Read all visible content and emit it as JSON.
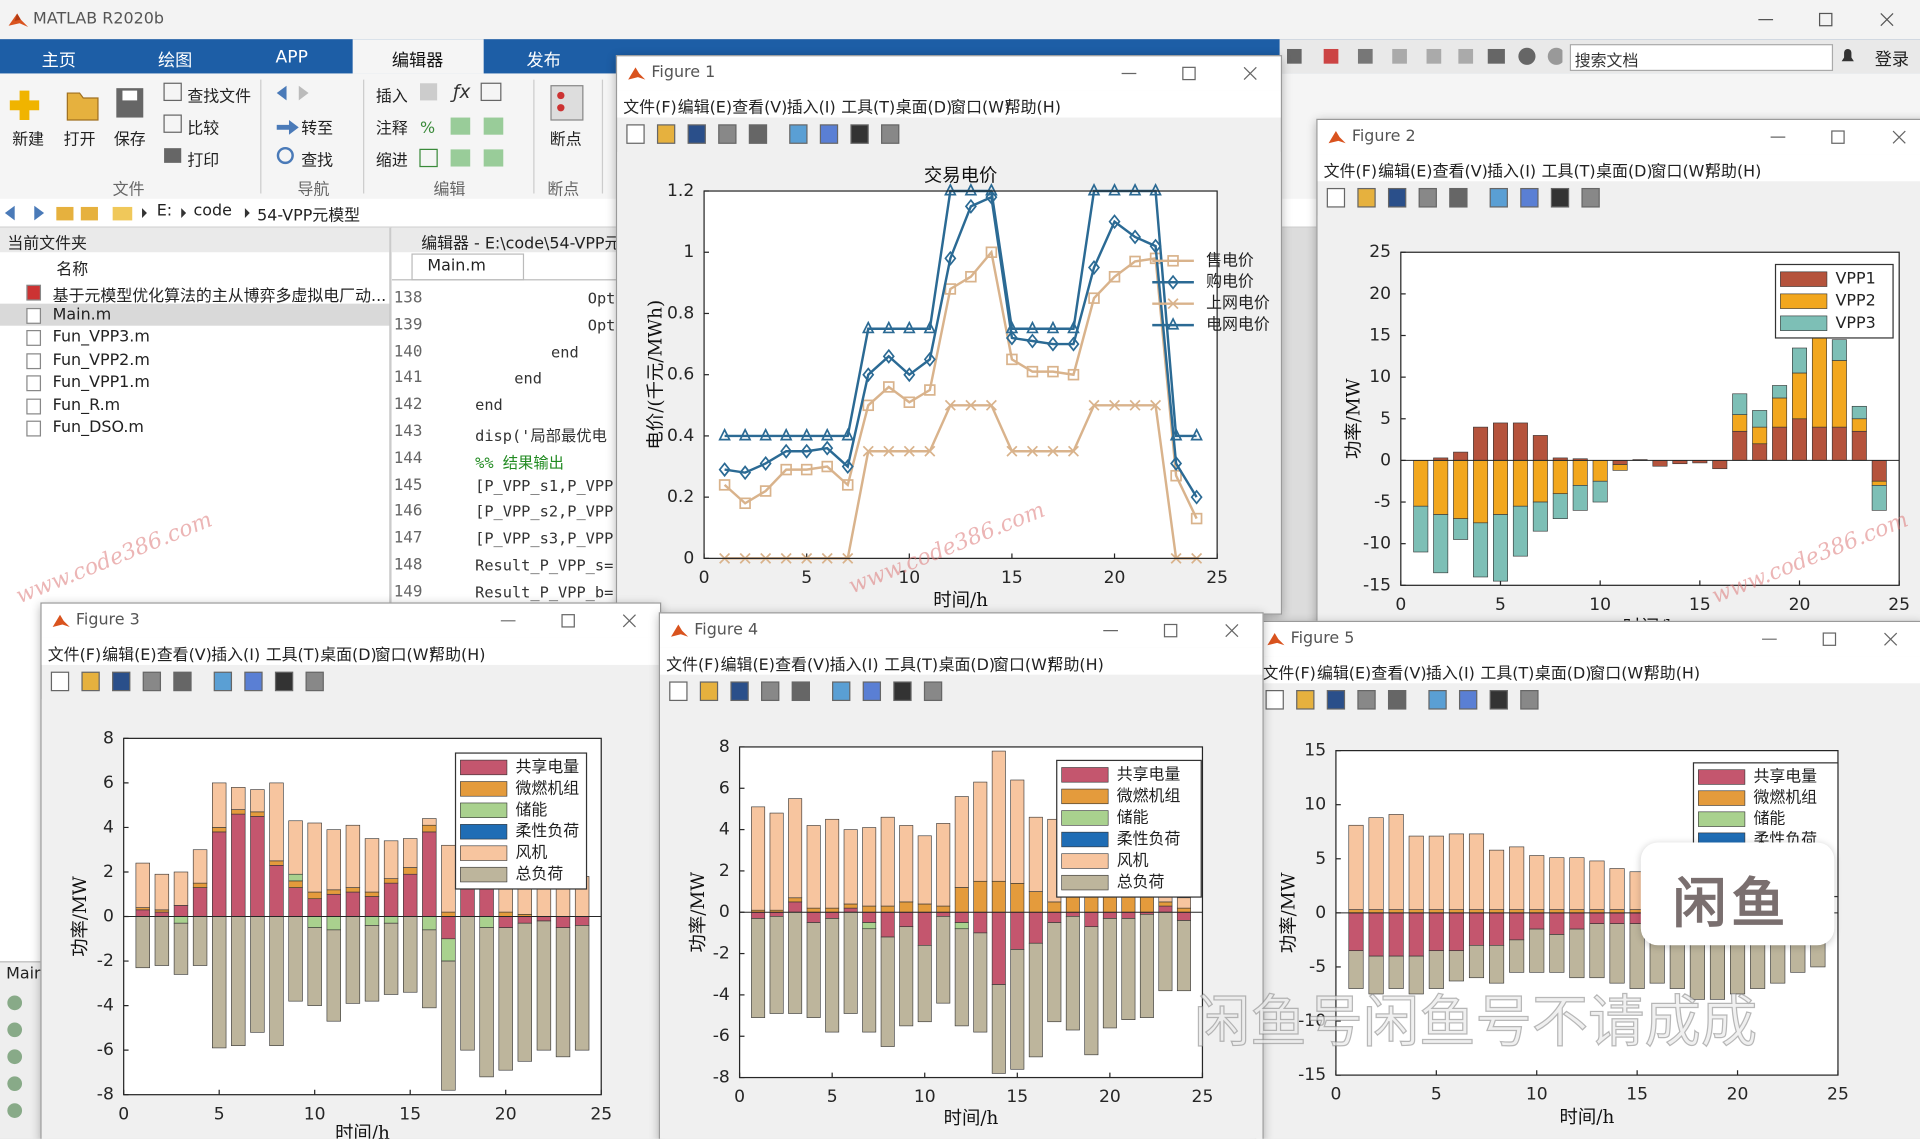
{
  "app": {
    "title": "MATLAB R2020b",
    "tabs": [
      "主页",
      "绘图",
      "APP",
      "编辑器",
      "发布"
    ],
    "ribbon": {
      "new": "新建",
      "open": "打开",
      "save": "保存",
      "find_files": "查找文件",
      "compare": "比较",
      "print": "打印",
      "goto": "转至",
      "find": "查找",
      "insert": "插入",
      "comment": "注释",
      "indent": "缩进",
      "breakpoints": "断点",
      "groups": [
        "文件",
        "导航",
        "编辑",
        "断点"
      ]
    },
    "search": "搜索文档",
    "login": "登录"
  },
  "path": [
    "E:",
    "code",
    "54-VPP元模型"
  ],
  "files": {
    "title": "当前文件夹",
    "header": "名称",
    "items": [
      "基于元模型优化算法的主从博弈多虚拟电厂动...",
      "Main.m",
      "Fun_VPP3.m",
      "Fun_VPP2.m",
      "Fun_VPP1.m",
      "Fun_R.m",
      "Fun_DSO.m"
    ]
  },
  "editor": {
    "title": "编辑器 - E:\\code\\54-VPP元",
    "tab": "Main.m",
    "lines": [
      [
        "138",
        "Opt"
      ],
      [
        "139",
        "Opt"
      ],
      [
        "140",
        "end"
      ],
      [
        "141",
        "end"
      ],
      [
        "142",
        "end"
      ],
      [
        "143",
        "disp('局部最优电"
      ],
      [
        "144",
        "%% 结果输出"
      ],
      [
        "145",
        "[P_VPP_s1,P_VPP"
      ],
      [
        "146",
        "[P_VPP_s2,P_VPP"
      ],
      [
        "147",
        "[P_VPP_s3,P_VPP"
      ],
      [
        "148",
        "Result_P_VPP_s="
      ],
      [
        "149",
        "Result_P_VPP_b="
      ]
    ]
  },
  "bottom_panel": "Main",
  "figures": [
    "Figure 1",
    "Figure 2",
    "Figure 3",
    "Figure 4",
    "Figure 5"
  ],
  "figure_menu": [
    "文件(F)",
    "编辑(E)",
    "查看(V)",
    "插入(I)",
    "工具(T)",
    "桌面(D)",
    "窗口(W)",
    "帮助(H)"
  ],
  "watermarks": [
    "www.code386.com",
    "闲鱼号闲鱼号不请成成",
    "闲鱼"
  ],
  "chart_data": [
    {
      "type": "line",
      "title": "交易电价",
      "xlabel": "时间/h",
      "ylabel": "电价/(千元/MWh)",
      "x": [
        1,
        2,
        3,
        4,
        5,
        6,
        7,
        8,
        9,
        10,
        11,
        12,
        13,
        14,
        15,
        16,
        17,
        18,
        19,
        20,
        21,
        22,
        23,
        24
      ],
      "xlim": [
        0,
        25
      ],
      "ylim": [
        0,
        1.2
      ],
      "xticks": [
        0,
        5,
        10,
        15,
        20,
        25
      ],
      "yticks": [
        0,
        0.2,
        0.4,
        0.6,
        0.8,
        1,
        1.2
      ],
      "legend": "northeast",
      "series": [
        {
          "name": "售电价",
          "color": "#d9b38c",
          "marker": "square",
          "values": [
            0.24,
            0.18,
            0.22,
            0.29,
            0.29,
            0.3,
            0.24,
            0.5,
            0.56,
            0.51,
            0.55,
            0.88,
            0.92,
            1.0,
            0.65,
            0.61,
            0.61,
            0.6,
            0.85,
            0.92,
            0.97,
            0.98,
            0.27,
            0.13
          ]
        },
        {
          "name": "购电价",
          "color": "#2b6a94",
          "marker": "diamond",
          "values": [
            0.29,
            0.28,
            0.31,
            0.35,
            0.35,
            0.36,
            0.3,
            0.6,
            0.66,
            0.6,
            0.65,
            0.98,
            1.15,
            1.18,
            0.72,
            0.71,
            0.7,
            0.7,
            0.95,
            1.1,
            1.05,
            1.02,
            0.31,
            0.2
          ]
        },
        {
          "name": "上网电价",
          "color": "#d9b38c",
          "marker": "x",
          "values": [
            0,
            0,
            0,
            0,
            0,
            0,
            0,
            0.35,
            0.35,
            0.35,
            0.35,
            0.5,
            0.5,
            0.5,
            0.35,
            0.35,
            0.35,
            0.35,
            0.5,
            0.5,
            0.5,
            0.5,
            0,
            0
          ]
        },
        {
          "name": "电网电价",
          "color": "#2b6a94",
          "marker": "triangle",
          "values": [
            0.4,
            0.4,
            0.4,
            0.4,
            0.4,
            0.4,
            0.4,
            0.75,
            0.75,
            0.75,
            0.75,
            1.2,
            1.2,
            1.2,
            0.75,
            0.75,
            0.75,
            0.75,
            1.2,
            1.2,
            1.2,
            1.2,
            0.4,
            0.4
          ]
        }
      ]
    },
    {
      "type": "bar",
      "stacked": true,
      "xlabel": "时间/h",
      "ylabel": "功率/MW",
      "x": [
        1,
        2,
        3,
        4,
        5,
        6,
        7,
        8,
        9,
        10,
        11,
        12,
        13,
        14,
        15,
        16,
        17,
        18,
        19,
        20,
        21,
        22,
        23,
        24
      ],
      "xlim": [
        0,
        25
      ],
      "ylim": [
        -15,
        25
      ],
      "xticks": [
        0,
        5,
        10,
        15,
        20,
        25
      ],
      "yticks": [
        -15,
        -10,
        -5,
        0,
        5,
        10,
        15,
        20,
        25
      ],
      "legend": "northeast",
      "series": [
        {
          "name": "VPP1",
          "color": "#b5533c",
          "values": [
            0,
            0.3,
            1,
            4,
            4.5,
            4.5,
            3,
            0.3,
            0.2,
            0,
            -0.5,
            0.1,
            -0.7,
            -0.4,
            -0.3,
            -1,
            3.5,
            2,
            4,
            5,
            4,
            4,
            3.5,
            -2.5
          ]
        },
        {
          "name": "VPP2",
          "color": "#f2a71e",
          "values": [
            -5.5,
            -6.5,
            -7,
            -7.5,
            -6.5,
            -5.5,
            -5,
            -4,
            -3,
            -2.5,
            -0.7,
            0,
            0,
            0,
            0,
            0,
            2,
            2,
            3.5,
            5.5,
            13,
            8,
            1.5,
            -0.5
          ]
        },
        {
          "name": "VPP3",
          "color": "#7dbfb6",
          "values": [
            -5.5,
            -7,
            -2.5,
            -6.5,
            -8,
            -6,
            -3.5,
            -3,
            -3,
            -2.5,
            0,
            0,
            0,
            0,
            0,
            0,
            2.5,
            2,
            1.5,
            3,
            6.5,
            2.5,
            1.5,
            -3
          ]
        }
      ]
    },
    {
      "type": "bar",
      "stacked": true,
      "xlabel": "时间/h",
      "ylabel": "功率/MW",
      "x": [
        1,
        2,
        3,
        4,
        5,
        6,
        7,
        8,
        9,
        10,
        11,
        12,
        13,
        14,
        15,
        16,
        17,
        18,
        19,
        20,
        21,
        22,
        23,
        24
      ],
      "xlim": [
        0,
        25
      ],
      "ylim": [
        -8,
        8
      ],
      "xticks": [
        0,
        5,
        10,
        15,
        20,
        25
      ],
      "yticks": [
        -8,
        -6,
        -4,
        -2,
        0,
        2,
        4,
        6,
        8
      ],
      "legend": "northeast",
      "series": [
        {
          "name": "共享电量",
          "color": "#c4566e",
          "values": [
            0.3,
            0.2,
            0.5,
            1.3,
            3.8,
            4.6,
            4.5,
            2.3,
            1.3,
            0.8,
            1.0,
            1.1,
            0.9,
            1.5,
            1.9,
            3.8,
            -1.0,
            2.2,
            4.4,
            -0.5,
            -0.3,
            -0.2,
            -0.5,
            -0.4
          ]
        },
        {
          "name": "微燃机组",
          "color": "#e49b3c",
          "values": [
            0.1,
            0.1,
            0,
            0.2,
            0.2,
            0.2,
            0.2,
            0.2,
            0.3,
            0.3,
            0.2,
            0.2,
            0.2,
            0.2,
            0.3,
            0.3,
            0.2,
            0,
            0,
            0.2,
            0.1,
            0,
            0,
            0
          ]
        },
        {
          "name": "储能",
          "color": "#a9d18e",
          "values": [
            0,
            0,
            -0.3,
            0,
            0,
            0,
            0,
            0,
            0.3,
            -0.5,
            -0.6,
            0,
            -0.4,
            -0.3,
            0,
            -0.6,
            -1.0,
            0,
            -0.5,
            0,
            0,
            0,
            0,
            0
          ]
        },
        {
          "name": "柔性负荷",
          "color": "#1f6db5",
          "values": [
            0,
            0,
            0,
            0,
            0,
            0,
            0,
            0,
            0,
            0,
            0,
            0,
            0,
            0,
            0,
            0,
            0,
            0,
            0,
            0,
            0,
            0,
            0,
            0
          ]
        },
        {
          "name": "风机",
          "color": "#f7c59f",
          "values": [
            2.0,
            1.6,
            1.5,
            1.5,
            2.0,
            1.0,
            1.0,
            3.5,
            2.4,
            3.1,
            2.7,
            2.8,
            2.4,
            1.7,
            1.3,
            0.3,
            3.0,
            3.5,
            1.8,
            6.0,
            6.0,
            5.0,
            2.3,
            1.8
          ]
        },
        {
          "name": "总负荷",
          "color": "#bdb59c",
          "values": [
            -2.3,
            -2.2,
            -2.3,
            -2.2,
            -5.9,
            -5.8,
            -5.2,
            -5.8,
            -3.8,
            -3.5,
            -4.1,
            -3.9,
            -3.4,
            -3.2,
            -3.4,
            -3.5,
            -5.8,
            -6.0,
            -6.7,
            -6.4,
            -6.2,
            -5.8,
            -5.8,
            -5.6
          ]
        }
      ]
    },
    {
      "type": "bar",
      "stacked": true,
      "xlabel": "时间/h",
      "ylabel": "功率/MW",
      "x": [
        1,
        2,
        3,
        4,
        5,
        6,
        7,
        8,
        9,
        10,
        11,
        12,
        13,
        14,
        15,
        16,
        17,
        18,
        19,
        20,
        21,
        22,
        23,
        24
      ],
      "xlim": [
        0,
        25
      ],
      "ylim": [
        -8,
        8
      ],
      "xticks": [
        0,
        5,
        10,
        15,
        20,
        25
      ],
      "yticks": [
        -8,
        -6,
        -4,
        -2,
        0,
        2,
        4,
        6,
        8
      ],
      "legend": "northeast",
      "series": [
        {
          "name": "共享电量",
          "color": "#c4566e",
          "values": [
            -0.3,
            -0.2,
            0.5,
            -0.5,
            -0.3,
            0.2,
            -0.5,
            -1.2,
            -0.7,
            -1.6,
            -0.2,
            -0.5,
            -1.0,
            -3.5,
            -1.8,
            -1.5,
            -0.5,
            -0.2,
            -0.7,
            -0.3,
            -0.3,
            -0.1,
            0.3,
            -0.4
          ]
        },
        {
          "name": "微燃机组",
          "color": "#e49b3c",
          "values": [
            0.1,
            0.1,
            0.2,
            0.2,
            0.2,
            0.2,
            0.3,
            0.3,
            0.5,
            0.4,
            0.3,
            1.2,
            1.5,
            1.5,
            1.4,
            1.0,
            0.5,
            0.8,
            0.9,
            0.9,
            0.9,
            0.9,
            0.2,
            0.2
          ]
        },
        {
          "name": "储能",
          "color": "#a9d18e",
          "values": [
            0,
            0,
            0,
            0,
            0,
            0,
            -0.3,
            0,
            0,
            0,
            0,
            -0.3,
            0,
            0,
            0,
            0,
            0,
            0,
            0,
            0,
            0,
            0,
            0,
            0
          ]
        },
        {
          "name": "柔性负荷",
          "color": "#1f6db5",
          "values": [
            0,
            0,
            0,
            0,
            0,
            0,
            0,
            0,
            0,
            0,
            0,
            0,
            0,
            0,
            0,
            0,
            0,
            0,
            0,
            0,
            0,
            0,
            0,
            0
          ]
        },
        {
          "name": "风机",
          "color": "#f7c59f",
          "values": [
            5.0,
            4.7,
            4.8,
            4.0,
            4.3,
            3.6,
            3.8,
            4.3,
            3.7,
            3.3,
            4.0,
            4.4,
            4.8,
            6.3,
            5.0,
            3.6,
            4.0,
            4.7,
            3.8,
            3.6,
            4.0,
            4.0,
            0.8,
            0.5
          ]
        },
        {
          "name": "总负荷",
          "color": "#bdb59c",
          "values": [
            -4.8,
            -4.7,
            -4.9,
            -4.6,
            -5.5,
            -4.9,
            -5.0,
            -5.3,
            -4.8,
            -3.7,
            -4.2,
            -4.7,
            -4.8,
            -4.3,
            -5.8,
            -5.5,
            -4.8,
            -5.5,
            -6.2,
            -5.3,
            -4.9,
            -5.0,
            -3.8,
            -3.4
          ]
        }
      ]
    },
    {
      "type": "bar",
      "stacked": true,
      "xlabel": "时间/h",
      "ylabel": "功率/MW",
      "x": [
        1,
        2,
        3,
        4,
        5,
        6,
        7,
        8,
        9,
        10,
        11,
        12,
        13,
        14,
        15,
        16,
        17,
        18,
        19,
        20,
        21,
        22,
        23,
        24
      ],
      "xlim": [
        0,
        25
      ],
      "ylim": [
        -15,
        15
      ],
      "xticks": [
        0,
        5,
        10,
        15,
        20,
        25
      ],
      "yticks": [
        -15,
        -10,
        -5,
        0,
        5,
        10,
        15
      ],
      "legend": "northeast",
      "series": [
        {
          "name": "共享电量",
          "color": "#c4566e",
          "values": [
            -3.5,
            -4,
            -4,
            -4,
            -3.5,
            -3.5,
            -3,
            -3,
            -2.5,
            -1.5,
            -2,
            -1.5,
            -1,
            -1,
            -1,
            -0.5,
            -0.5,
            -1,
            -0.5,
            -0.5,
            -0.5,
            -0.5,
            0,
            0
          ]
        },
        {
          "name": "微燃机组",
          "color": "#e49b3c",
          "values": [
            0.3,
            0.3,
            0.3,
            0.3,
            0.3,
            0.3,
            0.3,
            0.3,
            0.3,
            0.3,
            0.3,
            0.3,
            0.3,
            0.3,
            0.3,
            0.5,
            0.5,
            0.5,
            0.5,
            0.5,
            0.5,
            0.3,
            0.3,
            0.3
          ]
        },
        {
          "name": "储能",
          "color": "#a9d18e",
          "values": [
            0,
            0,
            0,
            0,
            0,
            0,
            0,
            0,
            0,
            0,
            0,
            0,
            0,
            0,
            0,
            0,
            0,
            0,
            0,
            0,
            0,
            0,
            0,
            0
          ]
        },
        {
          "name": "柔性负荷",
          "color": "#1f6db5",
          "values": [
            0,
            0,
            0,
            0,
            0,
            0,
            0,
            0,
            0,
            0,
            0,
            0,
            0,
            0,
            0,
            0,
            0,
            0,
            0,
            0,
            0,
            0,
            0,
            0
          ]
        },
        {
          "name": "风机",
          "color": "#f7c59f",
          "values": [
            7.8,
            8.5,
            8.8,
            6.8,
            6.8,
            7.0,
            7.0,
            5.5,
            5.8,
            5.0,
            4.8,
            4.8,
            4.5,
            3.8,
            3.5,
            3.0,
            3.3,
            3.0,
            3.3,
            3.5,
            3.5,
            3.7,
            3.5,
            3.0
          ]
        },
        {
          "name": "总负荷",
          "color": "#bdb59c",
          "values": [
            -3.5,
            -3.5,
            -3.0,
            -3.5,
            -3.5,
            -2.8,
            -3.0,
            -3.5,
            -3.0,
            -4.0,
            -3.5,
            -4.5,
            -5.0,
            -5.5,
            -6.0,
            -6.0,
            -6.5,
            -7.0,
            -7.5,
            -7.0,
            -6.5,
            -6.0,
            -5.5,
            -5.0
          ]
        }
      ]
    }
  ]
}
